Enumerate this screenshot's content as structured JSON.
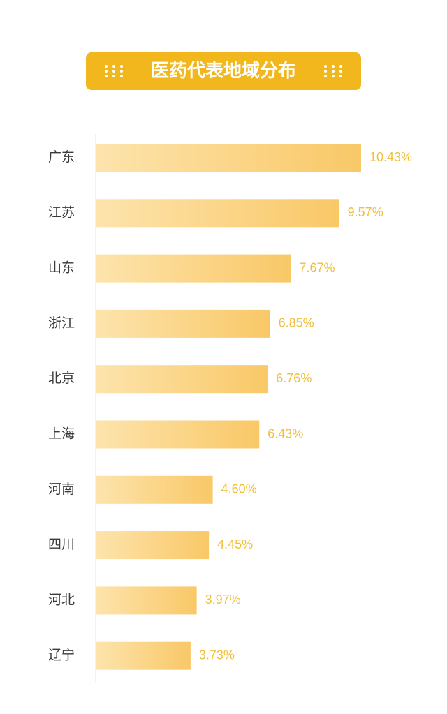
{
  "chart_data": {
    "type": "bar",
    "orientation": "horizontal",
    "title": "医药代表地域分布",
    "categories": [
      "广东",
      "江苏",
      "山东",
      "浙江",
      "北京",
      "上海",
      "河南",
      "四川",
      "河北",
      "辽宁"
    ],
    "values": [
      10.43,
      9.57,
      7.67,
      6.85,
      6.76,
      6.43,
      4.6,
      4.45,
      3.97,
      3.73
    ],
    "value_labels": [
      "10.43%",
      "9.57%",
      "7.67%",
      "6.85%",
      "6.76%",
      "6.43%",
      "4.60%",
      "4.45%",
      "3.97%",
      "3.73%"
    ],
    "color": "#f9c867"
  }
}
